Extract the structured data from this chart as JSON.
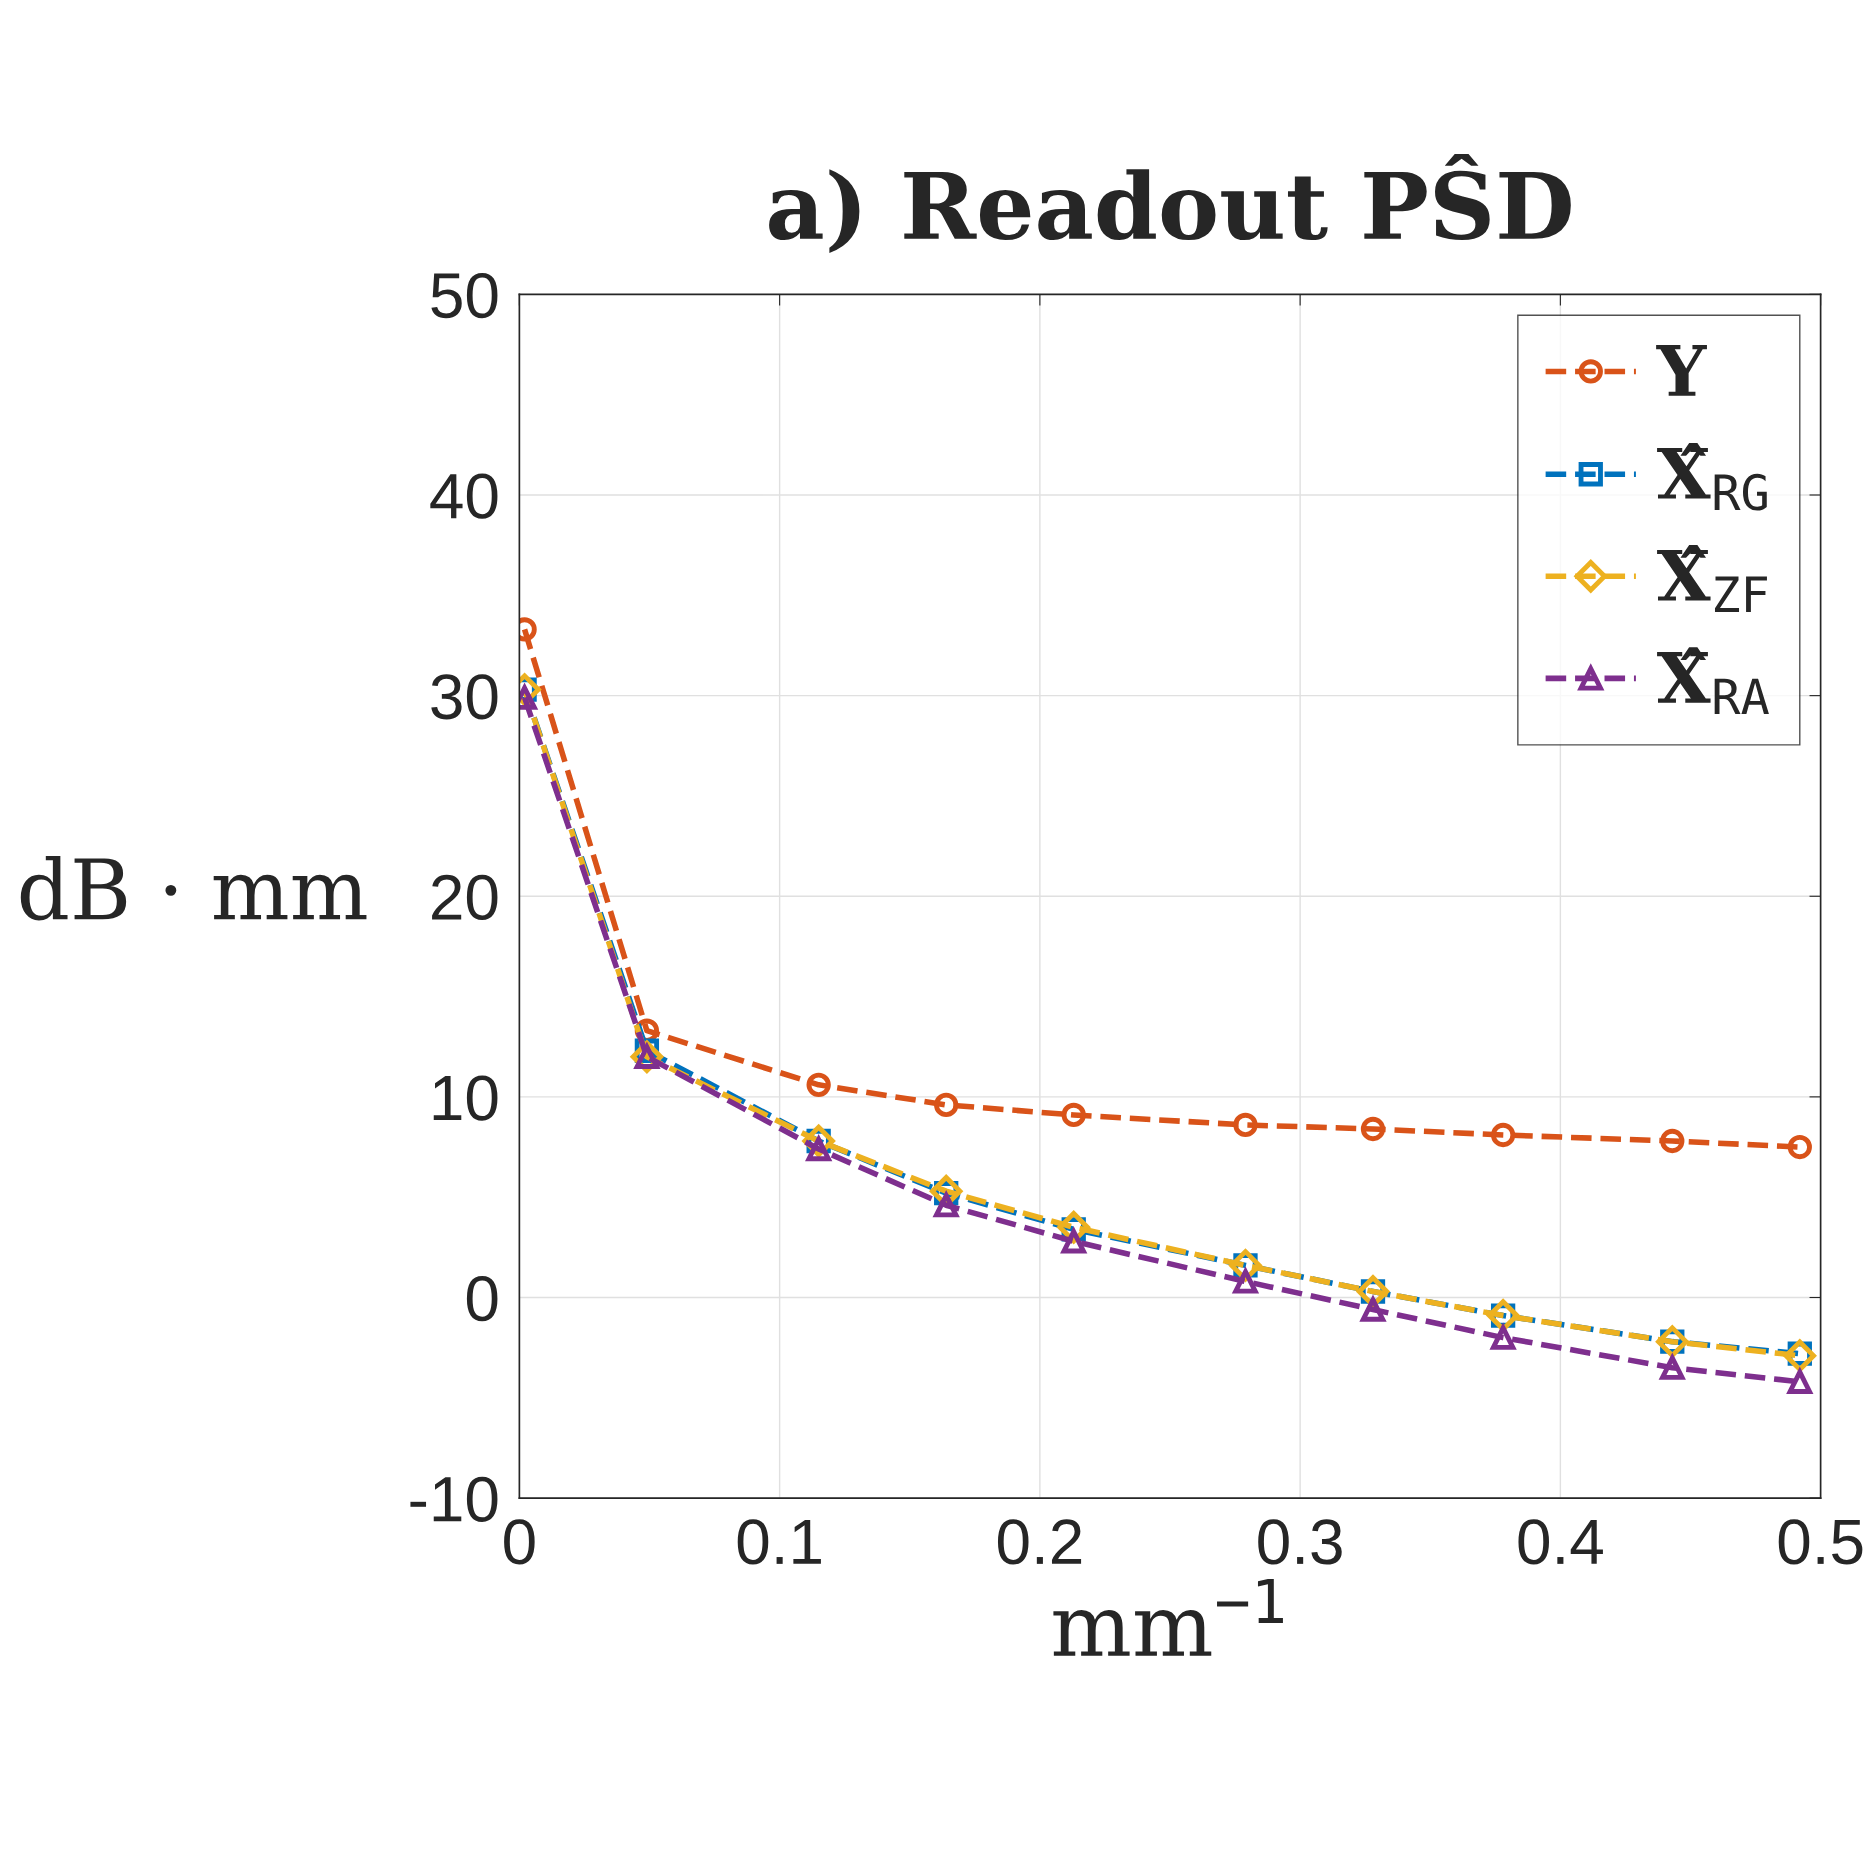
{
  "chart_data": {
    "type": "line",
    "title": "a) Readout PŜD",
    "xlabel": "mm$^{−1}$",
    "ylabel": "dB · mm",
    "x": [
      0.002,
      0.049,
      0.115,
      0.164,
      0.213,
      0.279,
      0.328,
      0.378,
      0.443,
      0.492
    ],
    "series": [
      {
        "name": "Y",
        "color": "#d95319",
        "marker": "circle",
        "values": [
          33.3,
          13.3,
          10.6,
          9.6,
          9.1,
          8.6,
          8.4,
          8.1,
          7.8,
          7.5
        ]
      },
      {
        "name": "X̂$_{RG}$",
        "color": "#0072bd",
        "marker": "square",
        "values": [
          30.3,
          12.3,
          7.8,
          5.2,
          3.4,
          1.6,
          0.3,
          -0.9,
          -2.2,
          -2.8
        ]
      },
      {
        "name": "X̂$_{ZF}$",
        "color": "#edb120",
        "marker": "diamond",
        "values": [
          30.3,
          12.0,
          7.8,
          5.3,
          3.5,
          1.6,
          0.3,
          -0.9,
          -2.2,
          -2.9
        ]
      },
      {
        "name": "X̂$_{RA}$",
        "color": "#7e2f8e",
        "marker": "triangle",
        "values": [
          29.9,
          12.0,
          7.4,
          4.6,
          2.8,
          0.8,
          -0.6,
          -2.0,
          -3.5,
          -4.2
        ]
      }
    ],
    "line_style": "dashed",
    "xlim": [
      0,
      0.5
    ],
    "xticks": [
      0,
      0.1,
      0.2,
      0.3,
      0.4,
      0.5
    ],
    "ylim": [
      -10,
      50
    ],
    "yticks": [
      -10,
      0,
      10,
      20,
      30,
      40,
      50
    ],
    "grid": true,
    "legend": "top right"
  }
}
